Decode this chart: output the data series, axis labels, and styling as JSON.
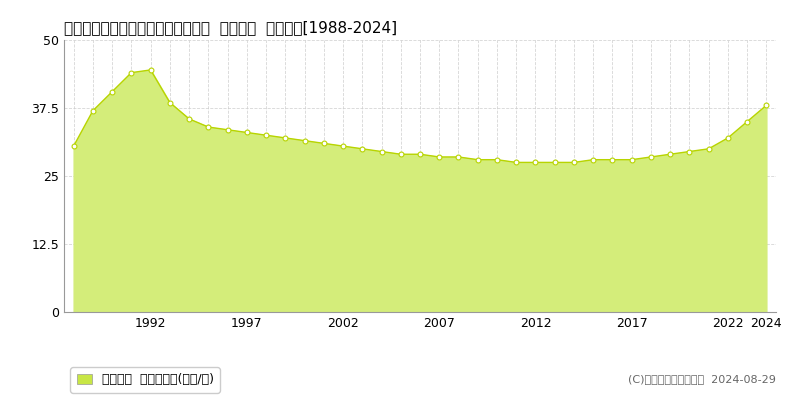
{
  "title": "愛知県知立市八橋町的場４３番２外  地価公示  地価推移[1988-2024]",
  "years": [
    1988,
    1989,
    1990,
    1991,
    1992,
    1993,
    1994,
    1995,
    1996,
    1997,
    1998,
    1999,
    2000,
    2001,
    2002,
    2003,
    2004,
    2005,
    2006,
    2007,
    2008,
    2009,
    2010,
    2011,
    2012,
    2013,
    2014,
    2015,
    2016,
    2017,
    2018,
    2019,
    2020,
    2021,
    2022,
    2023,
    2024
  ],
  "values": [
    30.5,
    37.0,
    40.5,
    44.0,
    44.5,
    38.5,
    35.5,
    34.0,
    33.5,
    33.0,
    32.5,
    32.0,
    31.5,
    31.0,
    30.5,
    30.0,
    29.5,
    29.0,
    29.0,
    28.5,
    28.5,
    28.0,
    28.0,
    27.5,
    27.5,
    27.5,
    27.5,
    28.0,
    28.0,
    28.0,
    28.5,
    29.0,
    29.5,
    30.0,
    32.0,
    35.0,
    38.0
  ],
  "fill_color": "#d4ed7a",
  "line_color": "#b8d400",
  "marker_facecolor": "#ffffff",
  "marker_edgecolor": "#b8d400",
  "background_color": "#ffffff",
  "plot_bg_color": "#ffffff",
  "grid_color": "#cccccc",
  "yticks": [
    0,
    12.5,
    25,
    37.5,
    50
  ],
  "xtick_years": [
    1992,
    1997,
    2002,
    2007,
    2012,
    2017,
    2022,
    2024
  ],
  "ylim": [
    0,
    50
  ],
  "xlim_start": 1987.5,
  "xlim_end": 2024.5,
  "legend_label": "地価公示  平均坪単価(万円/坪)",
  "legend_color": "#c8e645",
  "copyright_text": "(C)土地価格ドットコム  2024-08-29",
  "title_fontsize": 11,
  "axis_fontsize": 9,
  "legend_fontsize": 9
}
